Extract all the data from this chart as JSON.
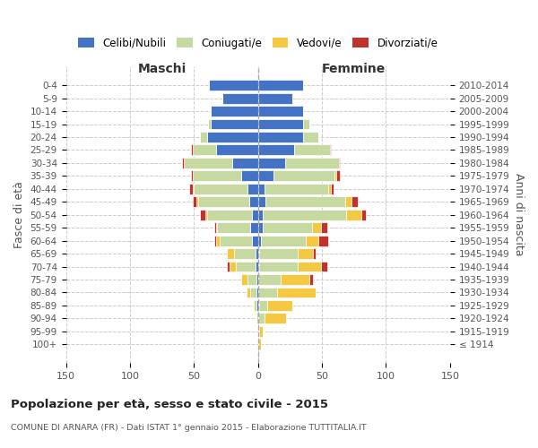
{
  "age_groups": [
    "100+",
    "95-99",
    "90-94",
    "85-89",
    "80-84",
    "75-79",
    "70-74",
    "65-69",
    "60-64",
    "55-59",
    "50-54",
    "45-49",
    "40-44",
    "35-39",
    "30-34",
    "25-29",
    "20-24",
    "15-19",
    "10-14",
    "5-9",
    "0-4"
  ],
  "birth_years": [
    "≤ 1914",
    "1915-1919",
    "1920-1924",
    "1925-1929",
    "1930-1934",
    "1935-1939",
    "1940-1944",
    "1945-1949",
    "1950-1954",
    "1955-1959",
    "1960-1964",
    "1965-1969",
    "1970-1974",
    "1975-1979",
    "1980-1984",
    "1985-1989",
    "1990-1994",
    "1995-1999",
    "2000-2004",
    "2005-2009",
    "2010-2014"
  ],
  "maschi_celibe": [
    0,
    0,
    0,
    1,
    1,
    1,
    2,
    2,
    5,
    6,
    5,
    7,
    8,
    13,
    20,
    33,
    40,
    37,
    37,
    28,
    38
  ],
  "maschi_coniugato": [
    0,
    0,
    1,
    2,
    5,
    7,
    15,
    17,
    25,
    26,
    35,
    40,
    42,
    38,
    38,
    18,
    5,
    2,
    0,
    0,
    0
  ],
  "maschi_vedovo": [
    0,
    0,
    0,
    1,
    3,
    5,
    5,
    5,
    3,
    1,
    1,
    1,
    1,
    0,
    0,
    0,
    0,
    0,
    0,
    0,
    0
  ],
  "maschi_divorziato": [
    0,
    0,
    0,
    0,
    0,
    0,
    2,
    0,
    1,
    1,
    4,
    3,
    3,
    1,
    1,
    1,
    0,
    0,
    0,
    0,
    0
  ],
  "femmine_celibe": [
    0,
    0,
    0,
    1,
    0,
    0,
    1,
    1,
    2,
    4,
    4,
    6,
    5,
    12,
    21,
    28,
    35,
    35,
    35,
    27,
    35
  ],
  "femmine_coniugato": [
    0,
    1,
    5,
    6,
    15,
    18,
    30,
    30,
    35,
    38,
    65,
    62,
    50,
    48,
    42,
    28,
    12,
    5,
    0,
    0,
    0
  ],
  "femmine_vedovo": [
    2,
    3,
    17,
    20,
    30,
    22,
    18,
    12,
    10,
    7,
    12,
    5,
    2,
    1,
    0,
    0,
    0,
    0,
    0,
    0,
    0
  ],
  "femmine_divorziato": [
    0,
    0,
    0,
    0,
    0,
    3,
    5,
    2,
    8,
    5,
    3,
    5,
    2,
    3,
    1,
    1,
    0,
    0,
    0,
    0,
    0
  ],
  "colors": {
    "celibe": "#4472C4",
    "coniugato": "#c5d9a0",
    "vedovo": "#f5c842",
    "divorziato": "#c0332a"
  },
  "xlim": 150,
  "title": "Popolazione per età, sesso e stato civile - 2015",
  "subtitle": "COMUNE DI ARNARA (FR) - Dati ISTAT 1° gennaio 2015 - Elaborazione TUTTITALIA.IT",
  "ylabel": "Fasce di età",
  "ylabel2": "Anni di nascita",
  "label_maschi": "Maschi",
  "label_femmine": "Femmine",
  "background_color": "#ffffff",
  "grid_color": "#cccccc",
  "legend_labels": [
    "Celibi/Nubili",
    "Coniugati/e",
    "Vedovi/e",
    "Divorziati/e"
  ]
}
